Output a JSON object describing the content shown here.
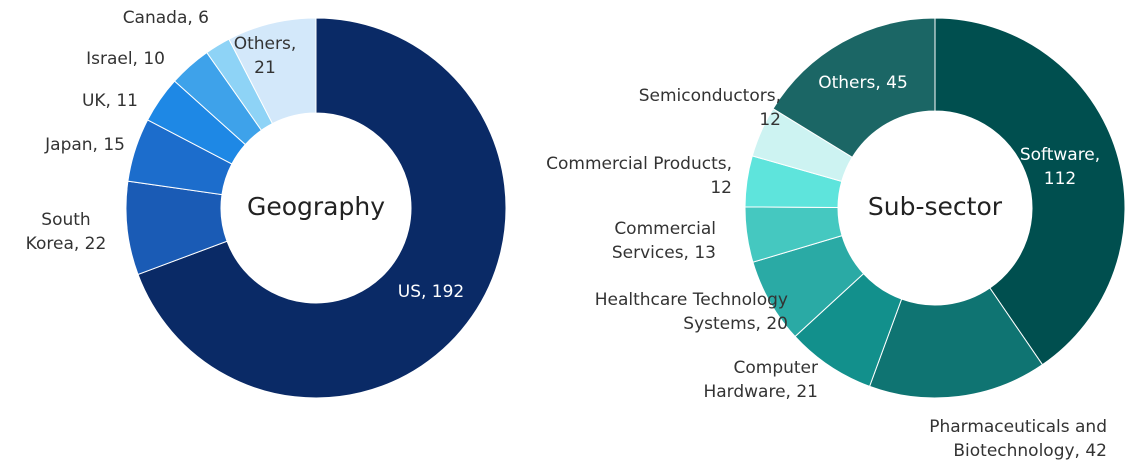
{
  "chart_data": [
    {
      "type": "donut",
      "title": "Geography",
      "values": [
        192,
        22,
        15,
        11,
        10,
        6,
        21
      ],
      "value_labels": [
        [
          "US, 192"
        ],
        [
          "South",
          "Korea, 22"
        ],
        [
          "Japan, 15"
        ],
        [
          "UK, 11"
        ],
        [
          "Israel, 10"
        ],
        [
          "Canada, 6"
        ],
        [
          "Others,",
          "21"
        ]
      ],
      "colors": [
        "#0a2a66",
        "#1a5bb5",
        "#1c6dcc",
        "#1e88e5",
        "#3ea2ea",
        "#8ed3f6",
        "#d3e8fa"
      ]
    },
    {
      "type": "donut",
      "title": "Sub-sector",
      "values": [
        112,
        42,
        21,
        20,
        13,
        12,
        12,
        45
      ],
      "value_labels": [
        [
          "Software,",
          "112"
        ],
        [
          "Pharmaceuticals and",
          "Biotechnology, 42"
        ],
        [
          "Computer",
          "Hardware, 21"
        ],
        [
          "Healthcare Technology",
          "Systems, 20"
        ],
        [
          "Commercial",
          "Services, 13"
        ],
        [
          "Commercial Products,",
          "12"
        ],
        [
          "Semiconductors,",
          "12"
        ],
        [
          "Others, 45"
        ]
      ],
      "colors": [
        "#004f4f",
        "#0f7472",
        "#12908c",
        "#2aaaa5",
        "#45c8c0",
        "#5ee4dc",
        "#cdf3f2",
        "#1b6665"
      ]
    }
  ]
}
